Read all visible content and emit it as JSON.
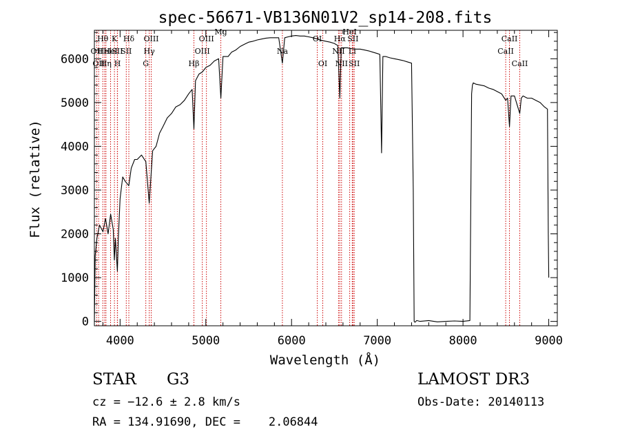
{
  "colors": {
    "axis": "#000000",
    "spectrum": "#000000",
    "line_marker": "#cc0000",
    "background": "#ffffff"
  },
  "chart_data": {
    "type": "line",
    "title": "spec-56671-VB136N01V2_sp14-208.fits",
    "xlabel": "Wavelength (Å)",
    "ylabel": "Flux (relative)",
    "xlim": [
      3700,
      9100
    ],
    "ylim": [
      -100,
      6650
    ],
    "x_ticks": [
      4000,
      5000,
      6000,
      7000,
      8000,
      9000
    ],
    "y_ticks": [
      0,
      1000,
      2000,
      3000,
      4000,
      5000,
      6000
    ],
    "x_tick_labels": [
      "4000",
      "5000",
      "6000",
      "7000",
      "8000",
      "9000"
    ],
    "y_tick_labels": [
      "0",
      "1000",
      "2000",
      "3000",
      "4000",
      "5000",
      "6000"
    ],
    "grid": false,
    "series": [
      {
        "name": "flux",
        "x": [
          3700,
          3710,
          3730,
          3760,
          3800,
          3830,
          3860,
          3890,
          3920,
          3933,
          3945,
          3968,
          3980,
          4000,
          4030,
          4060,
          4102,
          4130,
          4170,
          4200,
          4250,
          4300,
          4340,
          4380,
          4420,
          4460,
          4500,
          4550,
          4600,
          4650,
          4700,
          4750,
          4800,
          4840,
          4861,
          4880,
          4920,
          4960,
          5000,
          5050,
          5100,
          5150,
          5175,
          5200,
          5260,
          5300,
          5350,
          5400,
          5450,
          5500,
          5550,
          5600,
          5650,
          5700,
          5750,
          5800,
          5850,
          5893,
          5920,
          5960,
          6000,
          6050,
          6100,
          6150,
          6200,
          6250,
          6300,
          6350,
          6400,
          6450,
          6500,
          6540,
          6563,
          6580,
          6600,
          6650,
          6700,
          6750,
          6800,
          6850,
          6900,
          6950,
          7000,
          7030,
          7050,
          7065,
          7080,
          7100,
          7150,
          7200,
          7250,
          7300,
          7350,
          7400,
          7420,
          7430,
          7440,
          7460,
          7500,
          7600,
          7700,
          7800,
          7900,
          8000,
          8080,
          8100,
          8110,
          8120,
          8150,
          8200,
          8250,
          8300,
          8350,
          8400,
          8450,
          8498,
          8520,
          8542,
          8560,
          8600,
          8662,
          8680,
          8700,
          8750,
          8800,
          8850,
          8900,
          8950,
          8985,
          8995,
          9000
        ],
        "y": [
          0,
          1500,
          1900,
          2200,
          2050,
          2350,
          2000,
          2450,
          2100,
          1400,
          1900,
          1150,
          1900,
          2800,
          3300,
          3200,
          3100,
          3500,
          3700,
          3700,
          3800,
          3650,
          2700,
          3900,
          4000,
          4300,
          4450,
          4650,
          4750,
          4900,
          4950,
          5050,
          5200,
          5300,
          4400,
          5500,
          5650,
          5700,
          5800,
          5850,
          5950,
          6000,
          5100,
          6050,
          6050,
          6150,
          6200,
          6280,
          6330,
          6380,
          6400,
          6430,
          6450,
          6470,
          6480,
          6480,
          6480,
          5900,
          6480,
          6500,
          6520,
          6530,
          6520,
          6520,
          6500,
          6480,
          6450,
          6420,
          6400,
          6380,
          6350,
          6300,
          5100,
          6250,
          6250,
          6250,
          6230,
          6220,
          6220,
          6200,
          6180,
          6150,
          6120,
          6100,
          3850,
          6050,
          6050,
          6050,
          6020,
          6000,
          5980,
          5960,
          5930,
          5900,
          3000,
          0,
          -20,
          20,
          0,
          20,
          -10,
          0,
          10,
          0,
          20,
          5200,
          5400,
          5450,
          5420,
          5400,
          5380,
          5330,
          5300,
          5250,
          5200,
          5050,
          5100,
          4450,
          5150,
          5150,
          4750,
          5100,
          5150,
          5100,
          5100,
          5050,
          5000,
          4900,
          4850,
          2000,
          1000
        ]
      }
    ],
    "line_markers": [
      {
        "wavelength": 3727,
        "label": "OII",
        "row": 2
      },
      {
        "wavelength": 3750,
        "label": "OII",
        "row": 3
      },
      {
        "wavelength": 3798,
        "label": "Hθ",
        "row": 1
      },
      {
        "wavelength": 3820,
        "label": "HeI",
        "row": 2
      },
      {
        "wavelength": 3835,
        "label": "Hη",
        "row": 3
      },
      {
        "wavelength": 3889,
        "label": "HeI",
        "row": 2
      },
      {
        "wavelength": 3934,
        "label": "K",
        "row": 1
      },
      {
        "wavelength": 3968,
        "label": "SII",
        "row": 2
      },
      {
        "wavelength": 3970,
        "label": "H",
        "row": 3
      },
      {
        "wavelength": 4102,
        "label": "Hδ",
        "row": 1
      },
      {
        "wavelength": 4072,
        "label": "SII",
        "row": 2
      },
      {
        "wavelength": 4300,
        "label": "G",
        "row": 3
      },
      {
        "wavelength": 4340,
        "label": "Hγ",
        "row": 2
      },
      {
        "wavelength": 4363,
        "label": "OIII",
        "row": 1
      },
      {
        "wavelength": 4861,
        "label": "Hβ",
        "row": 3
      },
      {
        "wavelength": 4959,
        "label": "OIII",
        "row": 2
      },
      {
        "wavelength": 5007,
        "label": "OIII",
        "row": 1
      },
      {
        "wavelength": 5175,
        "label": "Mg",
        "row": 0
      },
      {
        "wavelength": 5893,
        "label": "Na",
        "row": 2
      },
      {
        "wavelength": 6300,
        "label": "OI",
        "row": 1
      },
      {
        "wavelength": 6364,
        "label": "OI",
        "row": 3
      },
      {
        "wavelength": 6548,
        "label": "NII",
        "row": 2
      },
      {
        "wavelength": 6563,
        "label": "Hα",
        "row": 1
      },
      {
        "wavelength": 6583,
        "label": "NII",
        "row": 3
      },
      {
        "wavelength": 6678,
        "label": "HeI",
        "row": 0
      },
      {
        "wavelength": 6708,
        "label": "Li",
        "row": 2
      },
      {
        "wavelength": 6716,
        "label": "SII",
        "row": 1
      },
      {
        "wavelength": 6731,
        "label": "SII",
        "row": 3
      },
      {
        "wavelength": 8498,
        "label": "CaII",
        "row": 2
      },
      {
        "wavelength": 8542,
        "label": "CaII",
        "row": 1
      },
      {
        "wavelength": 8662,
        "label": "CaII",
        "row": 3
      }
    ]
  },
  "info": {
    "object_class": "STAR",
    "subclass": "G3",
    "redshift_text": "cz = −12.6 ± 2.8 km/s",
    "coords_text": "RA = 134.91690, DEC =    2.06844",
    "survey": "LAMOST DR3",
    "obs_date_text": "Obs-Date: 20140113"
  }
}
